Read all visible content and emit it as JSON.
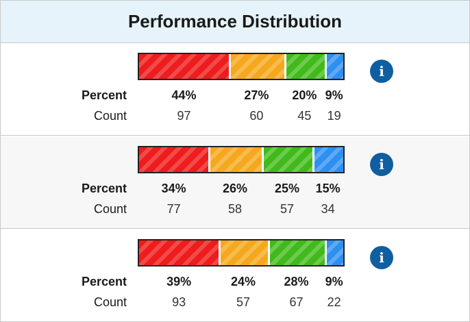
{
  "header": {
    "title": "Performance Distribution"
  },
  "labels": {
    "percent": "Percent",
    "count": "Count"
  },
  "colors": {
    "red": "#ee1c1c",
    "orange": "#f6a81d",
    "green": "#41b91c",
    "blue": "#2d8ff0",
    "info": "#0f5fa0"
  },
  "icons": {
    "info": "info-icon",
    "info_glyph": "i"
  },
  "rows": [
    {
      "segments": [
        {
          "color": "red",
          "percent": 44,
          "percent_label": "44%",
          "count": "97"
        },
        {
          "color": "orange",
          "percent": 27,
          "percent_label": "27%",
          "count": "60"
        },
        {
          "color": "green",
          "percent": 20,
          "percent_label": "20%",
          "count": "45"
        },
        {
          "color": "blue",
          "percent": 9,
          "percent_label": "9%",
          "count": "19"
        }
      ]
    },
    {
      "segments": [
        {
          "color": "red",
          "percent": 34,
          "percent_label": "34%",
          "count": "77"
        },
        {
          "color": "orange",
          "percent": 26,
          "percent_label": "26%",
          "count": "58"
        },
        {
          "color": "green",
          "percent": 25,
          "percent_label": "25%",
          "count": "57"
        },
        {
          "color": "blue",
          "percent": 15,
          "percent_label": "15%",
          "count": "34"
        }
      ]
    },
    {
      "segments": [
        {
          "color": "red",
          "percent": 39,
          "percent_label": "39%",
          "count": "93"
        },
        {
          "color": "orange",
          "percent": 24,
          "percent_label": "24%",
          "count": "57"
        },
        {
          "color": "green",
          "percent": 28,
          "percent_label": "28%",
          "count": "67"
        },
        {
          "color": "blue",
          "percent": 9,
          "percent_label": "9%",
          "count": "22"
        }
      ]
    }
  ]
}
